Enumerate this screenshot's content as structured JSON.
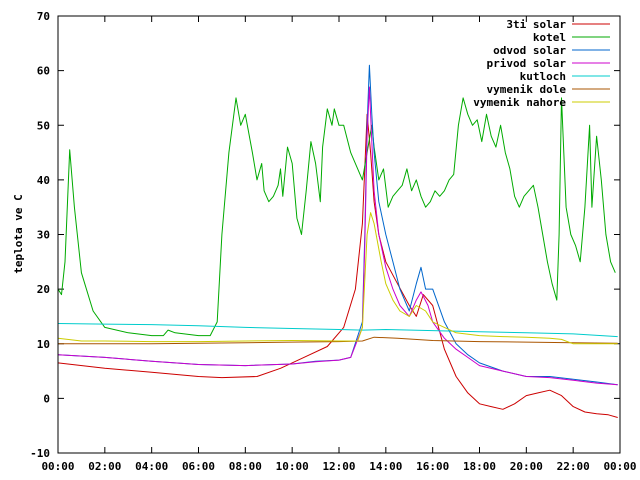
{
  "chart_data": {
    "type": "line",
    "title": "",
    "xlabel": "",
    "ylabel": "teplota ve C",
    "xlim": [
      0,
      24
    ],
    "ylim": [
      -10,
      70
    ],
    "grid": false,
    "legend_position": "top-right",
    "x_tick_labels": [
      "00:00",
      "02:00",
      "04:00",
      "06:00",
      "08:00",
      "10:00",
      "12:00",
      "14:00",
      "16:00",
      "18:00",
      "20:00",
      "22:00",
      "00:00"
    ],
    "y_tick_labels": [
      "-10",
      "0",
      "10",
      "20",
      "30",
      "40",
      "50",
      "60",
      "70"
    ],
    "series": [
      {
        "name": "3ti solar",
        "color": "#cc0000",
        "points": [
          [
            0,
            6.5
          ],
          [
            2,
            5.5
          ],
          [
            4,
            4.8
          ],
          [
            6,
            4
          ],
          [
            7,
            3.8
          ],
          [
            8.5,
            4
          ],
          [
            9.5,
            5.5
          ],
          [
            10.5,
            7.5
          ],
          [
            11.5,
            9.5
          ],
          [
            12.2,
            13
          ],
          [
            12.7,
            20
          ],
          [
            13.0,
            32
          ],
          [
            13.2,
            52
          ],
          [
            13.35,
            45
          ],
          [
            13.5,
            36
          ],
          [
            13.7,
            30
          ],
          [
            14,
            25
          ],
          [
            14.5,
            21
          ],
          [
            15,
            17
          ],
          [
            15.3,
            15
          ],
          [
            15.6,
            19
          ],
          [
            16,
            17
          ],
          [
            16.5,
            9
          ],
          [
            17,
            4
          ],
          [
            17.5,
            1
          ],
          [
            18,
            -1
          ],
          [
            18.5,
            -1.5
          ],
          [
            19,
            -2
          ],
          [
            19.5,
            -1
          ],
          [
            20,
            0.5
          ],
          [
            20.5,
            1
          ],
          [
            21,
            1.5
          ],
          [
            21.5,
            0.5
          ],
          [
            22,
            -1.5
          ],
          [
            22.5,
            -2.5
          ],
          [
            23,
            -2.8
          ],
          [
            23.5,
            -3
          ],
          [
            23.9,
            -3.5
          ]
        ]
      },
      {
        "name": "kotel",
        "color": "#00aa00",
        "points": [
          [
            0,
            20
          ],
          [
            0.15,
            19
          ],
          [
            0.3,
            25
          ],
          [
            0.5,
            45.5
          ],
          [
            0.7,
            35
          ],
          [
            1,
            23
          ],
          [
            1.5,
            16
          ],
          [
            2,
            13
          ],
          [
            3,
            12
          ],
          [
            4,
            11.5
          ],
          [
            4.5,
            11.5
          ],
          [
            4.7,
            12.5
          ],
          [
            5,
            12
          ],
          [
            6,
            11.5
          ],
          [
            6.5,
            11.5
          ],
          [
            6.8,
            14
          ],
          [
            7,
            30
          ],
          [
            7.3,
            45
          ],
          [
            7.6,
            55
          ],
          [
            7.8,
            50
          ],
          [
            8,
            52
          ],
          [
            8.3,
            45
          ],
          [
            8.5,
            40
          ],
          [
            8.7,
            43
          ],
          [
            8.8,
            38
          ],
          [
            9,
            36
          ],
          [
            9.2,
            37
          ],
          [
            9.4,
            39
          ],
          [
            9.5,
            42
          ],
          [
            9.6,
            37
          ],
          [
            9.8,
            46
          ],
          [
            10,
            43
          ],
          [
            10.2,
            33
          ],
          [
            10.4,
            30
          ],
          [
            10.6,
            38
          ],
          [
            10.8,
            47
          ],
          [
            11,
            43
          ],
          [
            11.2,
            36
          ],
          [
            11.3,
            46
          ],
          [
            11.5,
            53
          ],
          [
            11.7,
            50
          ],
          [
            11.8,
            53
          ],
          [
            12,
            50
          ],
          [
            12.2,
            50
          ],
          [
            12.5,
            45
          ],
          [
            12.8,
            42
          ],
          [
            13,
            40
          ],
          [
            13.2,
            45
          ],
          [
            13.4,
            50
          ],
          [
            13.5,
            46
          ],
          [
            13.7,
            40
          ],
          [
            13.9,
            42
          ],
          [
            14.1,
            35
          ],
          [
            14.3,
            37
          ],
          [
            14.5,
            38
          ],
          [
            14.7,
            39
          ],
          [
            14.9,
            42
          ],
          [
            15.1,
            38
          ],
          [
            15.3,
            40
          ],
          [
            15.5,
            37
          ],
          [
            15.7,
            35
          ],
          [
            15.9,
            36
          ],
          [
            16.1,
            38
          ],
          [
            16.3,
            37
          ],
          [
            16.5,
            38
          ],
          [
            16.7,
            40
          ],
          [
            16.9,
            41
          ],
          [
            17.1,
            50
          ],
          [
            17.3,
            55
          ],
          [
            17.5,
            52
          ],
          [
            17.7,
            50
          ],
          [
            17.9,
            51
          ],
          [
            18.1,
            47
          ],
          [
            18.3,
            52
          ],
          [
            18.5,
            48
          ],
          [
            18.7,
            46
          ],
          [
            18.9,
            50
          ],
          [
            19.1,
            45
          ],
          [
            19.3,
            42
          ],
          [
            19.5,
            37
          ],
          [
            19.7,
            35
          ],
          [
            19.9,
            37
          ],
          [
            20.1,
            38
          ],
          [
            20.3,
            39
          ],
          [
            20.5,
            35
          ],
          [
            20.7,
            30
          ],
          [
            20.9,
            25
          ],
          [
            21.1,
            21
          ],
          [
            21.3,
            18
          ],
          [
            21.4,
            30
          ],
          [
            21.5,
            55
          ],
          [
            21.7,
            35
          ],
          [
            21.9,
            30
          ],
          [
            22.1,
            28
          ],
          [
            22.3,
            25
          ],
          [
            22.5,
            35
          ],
          [
            22.7,
            50
          ],
          [
            22.8,
            35
          ],
          [
            23,
            48
          ],
          [
            23.2,
            40
          ],
          [
            23.4,
            30
          ],
          [
            23.6,
            25
          ],
          [
            23.8,
            23
          ]
        ]
      },
      {
        "name": "odvod solar",
        "color": "#0066cc",
        "points": [
          [
            0,
            8
          ],
          [
            2,
            7.5
          ],
          [
            4,
            6.8
          ],
          [
            6,
            6.2
          ],
          [
            8,
            6
          ],
          [
            10,
            6.3
          ],
          [
            11,
            6.8
          ],
          [
            12,
            7
          ],
          [
            12.5,
            7.5
          ],
          [
            13,
            14
          ],
          [
            13.1,
            30
          ],
          [
            13.2,
            50
          ],
          [
            13.3,
            61
          ],
          [
            13.4,
            52
          ],
          [
            13.5,
            45
          ],
          [
            13.7,
            36
          ],
          [
            14,
            30
          ],
          [
            14.3,
            25
          ],
          [
            14.6,
            20
          ],
          [
            15,
            16
          ],
          [
            15.3,
            21
          ],
          [
            15.5,
            24
          ],
          [
            15.7,
            20
          ],
          [
            16,
            20
          ],
          [
            16.5,
            14
          ],
          [
            17,
            10
          ],
          [
            17.5,
            8
          ],
          [
            18,
            6.5
          ],
          [
            19,
            5
          ],
          [
            20,
            4
          ],
          [
            21,
            4
          ],
          [
            22,
            3.5
          ],
          [
            23,
            3
          ],
          [
            23.9,
            2.5
          ]
        ]
      },
      {
        "name": "privod solar",
        "color": "#cc00cc",
        "points": [
          [
            0,
            8
          ],
          [
            2,
            7.5
          ],
          [
            4,
            6.8
          ],
          [
            6,
            6.2
          ],
          [
            8,
            6
          ],
          [
            10,
            6.3
          ],
          [
            11,
            6.7
          ],
          [
            12,
            7
          ],
          [
            12.5,
            7.5
          ],
          [
            13,
            13
          ],
          [
            13.1,
            28
          ],
          [
            13.2,
            48
          ],
          [
            13.3,
            57
          ],
          [
            13.4,
            47
          ],
          [
            13.5,
            38
          ],
          [
            13.7,
            30
          ],
          [
            14,
            24
          ],
          [
            14.3,
            20
          ],
          [
            14.6,
            17
          ],
          [
            15,
            15
          ],
          [
            15.3,
            18
          ],
          [
            15.5,
            19.5
          ],
          [
            15.8,
            17
          ],
          [
            16,
            14
          ],
          [
            16.5,
            11
          ],
          [
            17,
            9
          ],
          [
            17.5,
            7.5
          ],
          [
            18,
            6
          ],
          [
            19,
            5
          ],
          [
            20,
            4
          ],
          [
            21,
            3.8
          ],
          [
            22,
            3.3
          ],
          [
            23,
            2.8
          ],
          [
            23.9,
            2.5
          ]
        ]
      },
      {
        "name": "kutloch",
        "color": "#00cccc",
        "points": [
          [
            0,
            13.7
          ],
          [
            2,
            13.6
          ],
          [
            4,
            13.5
          ],
          [
            6,
            13.3
          ],
          [
            8,
            13
          ],
          [
            10,
            12.8
          ],
          [
            12,
            12.6
          ],
          [
            13,
            12.5
          ],
          [
            14,
            12.6
          ],
          [
            16,
            12.4
          ],
          [
            18,
            12.2
          ],
          [
            20,
            12
          ],
          [
            22,
            11.8
          ],
          [
            23.9,
            11.3
          ]
        ]
      },
      {
        "name": "vymenik dole",
        "color": "#aa5500",
        "points": [
          [
            0,
            10
          ],
          [
            2,
            10
          ],
          [
            4,
            10
          ],
          [
            6,
            10.1
          ],
          [
            8,
            10.2
          ],
          [
            10,
            10.3
          ],
          [
            12,
            10.4
          ],
          [
            13,
            10.5
          ],
          [
            13.5,
            11.2
          ],
          [
            14.5,
            11
          ],
          [
            16,
            10.6
          ],
          [
            18,
            10.4
          ],
          [
            20,
            10.3
          ],
          [
            22,
            10.2
          ],
          [
            23.9,
            10.1
          ]
        ]
      },
      {
        "name": "vymenik nahore",
        "color": "#cccc00",
        "points": [
          [
            0,
            11
          ],
          [
            1,
            10.5
          ],
          [
            2,
            10.5
          ],
          [
            4,
            10.4
          ],
          [
            6,
            10.4
          ],
          [
            8,
            10.5
          ],
          [
            10,
            10.6
          ],
          [
            12,
            10.5
          ],
          [
            12.8,
            10.5
          ],
          [
            13,
            13
          ],
          [
            13.2,
            30
          ],
          [
            13.35,
            34
          ],
          [
            13.5,
            32
          ],
          [
            13.8,
            25
          ],
          [
            14,
            21
          ],
          [
            14.3,
            18
          ],
          [
            14.6,
            16
          ],
          [
            15,
            15
          ],
          [
            15.3,
            17
          ],
          [
            15.7,
            16
          ],
          [
            16,
            14
          ],
          [
            16.5,
            13
          ],
          [
            17,
            12
          ],
          [
            18,
            11.5
          ],
          [
            19,
            11.3
          ],
          [
            20,
            11.2
          ],
          [
            21,
            11
          ],
          [
            21.5,
            10.8
          ],
          [
            22,
            10
          ],
          [
            23.9,
            10
          ]
        ]
      }
    ]
  }
}
